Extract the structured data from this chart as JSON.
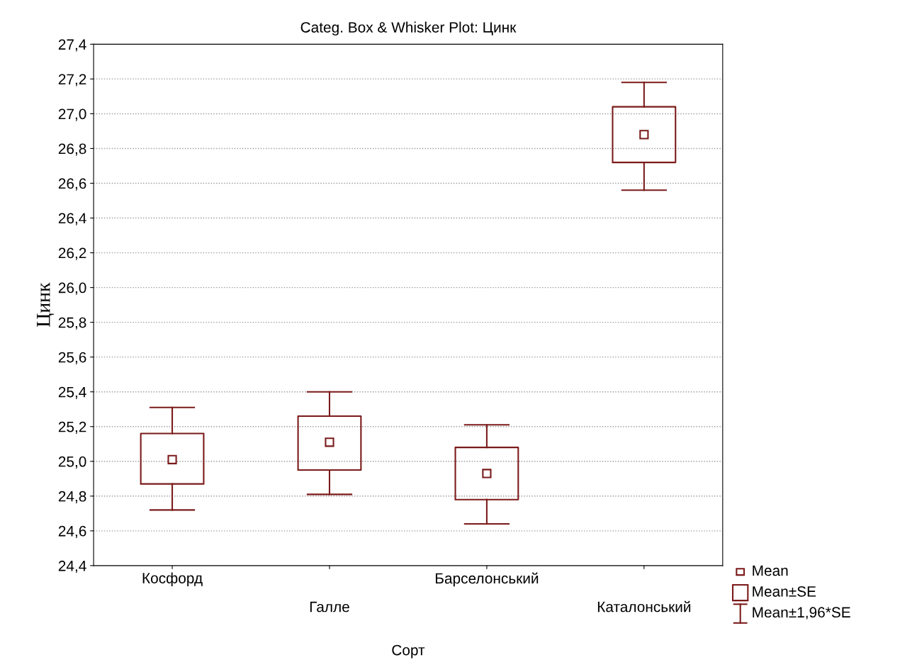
{
  "chart_data": {
    "type": "box",
    "title": "Categ. Box & Whisker Plot: Цинк",
    "xlabel": "Сорт",
    "ylabel": "Цинк",
    "categories": [
      "Косфорд",
      "Галле",
      "Барселонський",
      "Каталонський"
    ],
    "color": "#7b1a1a",
    "boxes": [
      {
        "low": 24.72,
        "q1": 24.87,
        "mean": 25.01,
        "q3": 25.16,
        "high": 25.31
      },
      {
        "low": 24.81,
        "q1": 24.95,
        "mean": 25.11,
        "q3": 25.26,
        "high": 25.4
      },
      {
        "low": 24.64,
        "q1": 24.78,
        "mean": 24.93,
        "q3": 25.08,
        "high": 25.21
      },
      {
        "low": 26.56,
        "q1": 26.72,
        "mean": 26.88,
        "q3": 27.04,
        "high": 27.18
      }
    ],
    "annotations": [
      "Mean",
      "Mean±SE",
      "Mean±1,96*SE"
    ],
    "marker": "square",
    "ylim": [
      24.4,
      27.4
    ],
    "yticks": [
      {
        "value": 24.4,
        "label": "24,4"
      },
      {
        "value": 24.6,
        "label": "24,6"
      },
      {
        "value": 24.8,
        "label": "24,8"
      },
      {
        "value": 25.0,
        "label": "25,0"
      },
      {
        "value": 25.2,
        "label": "25,2"
      },
      {
        "value": 25.4,
        "label": "25,4"
      },
      {
        "value": 25.6,
        "label": "25,6"
      },
      {
        "value": 25.8,
        "label": "25,8"
      },
      {
        "value": 26.0,
        "label": "26,0"
      },
      {
        "value": 26.2,
        "label": "26,2"
      },
      {
        "value": 26.4,
        "label": "26,4"
      },
      {
        "value": 26.6,
        "label": "26,6"
      },
      {
        "value": 26.8,
        "label": "26,8"
      },
      {
        "value": 27.0,
        "label": "27,0"
      },
      {
        "value": 27.2,
        "label": "27,2"
      },
      {
        "value": 27.4,
        "label": "27,4"
      }
    ],
    "grid": "y"
  }
}
